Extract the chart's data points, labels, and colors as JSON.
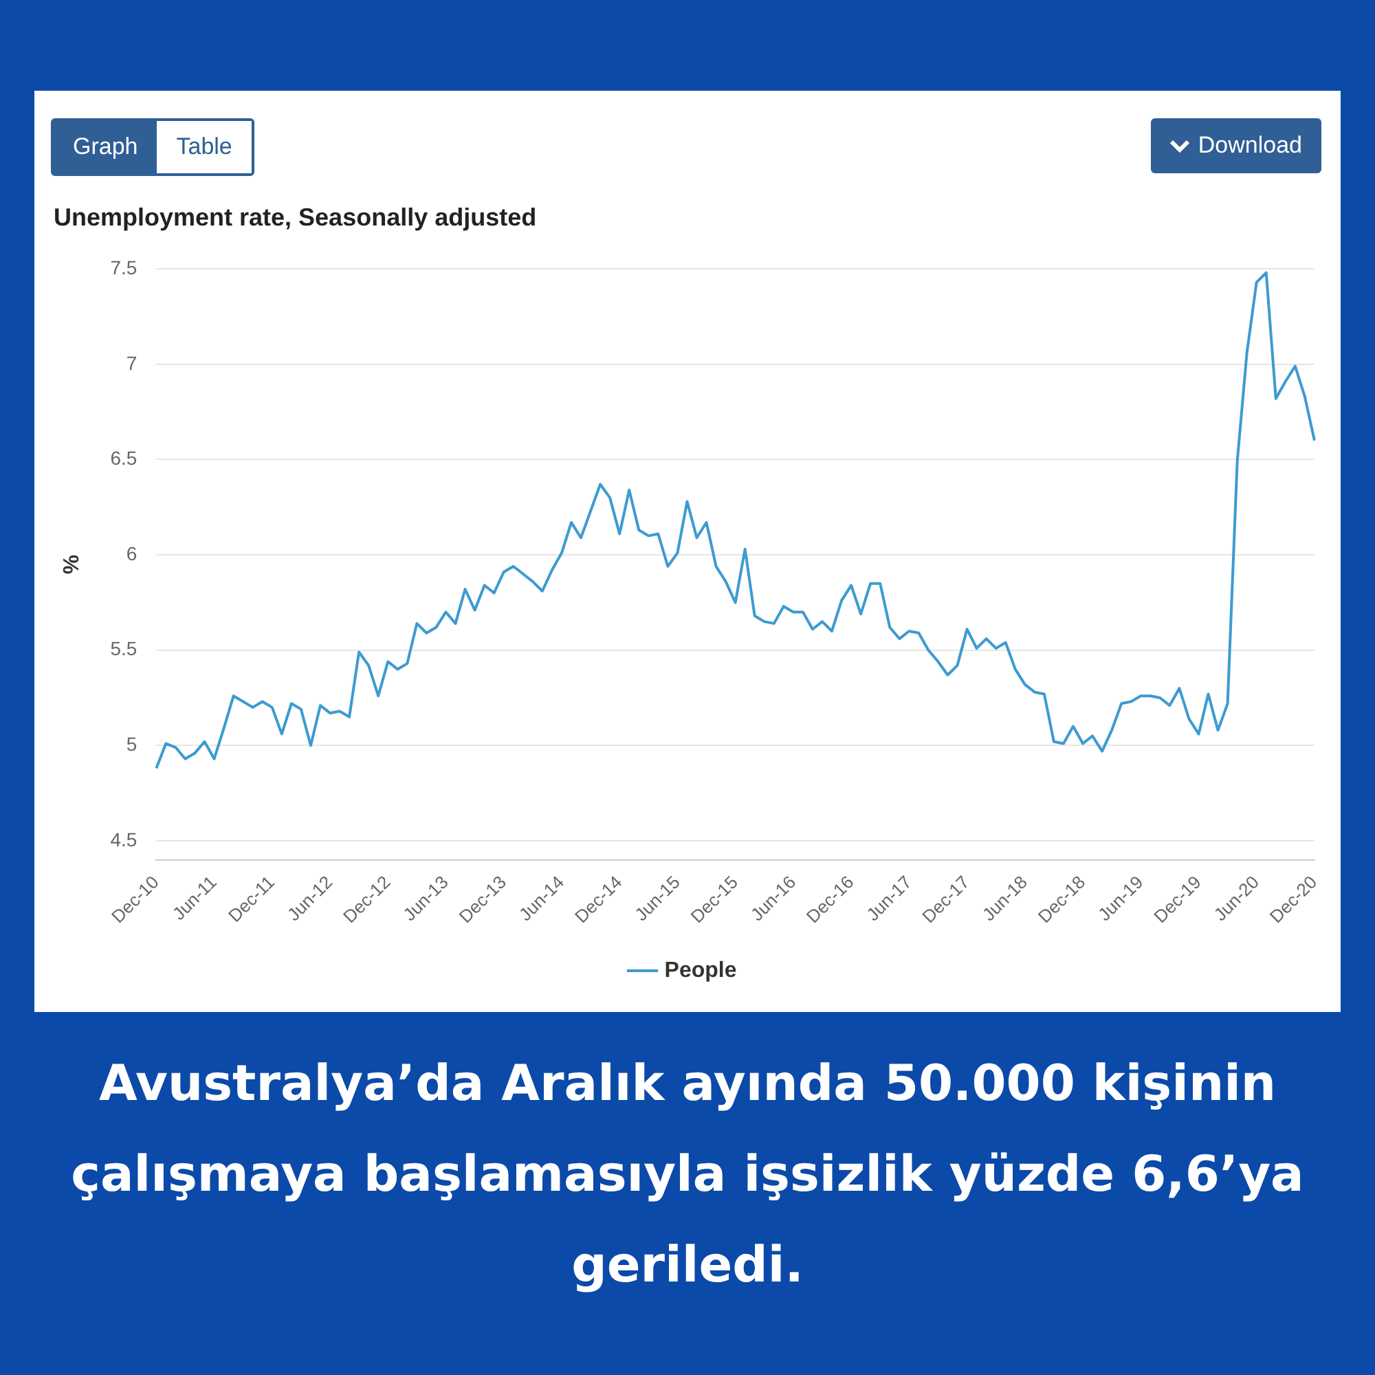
{
  "chart_data": {
    "type": "line",
    "title": "Unemployment rate, Seasonally adjusted",
    "ylabel": "%",
    "categories": [
      "Dec-10",
      null,
      null,
      null,
      null,
      null,
      "Jun-11",
      null,
      null,
      null,
      null,
      null,
      "Dec-11",
      null,
      null,
      null,
      null,
      null,
      "Jun-12",
      null,
      null,
      null,
      null,
      null,
      "Dec-12",
      null,
      null,
      null,
      null,
      null,
      "Jun-13",
      null,
      null,
      null,
      null,
      null,
      "Dec-13",
      null,
      null,
      null,
      null,
      null,
      "Jun-14",
      null,
      null,
      null,
      null,
      null,
      "Dec-14",
      null,
      null,
      null,
      null,
      null,
      "Jun-15",
      null,
      null,
      null,
      null,
      null,
      "Dec-15",
      null,
      null,
      null,
      null,
      null,
      "Jun-16",
      null,
      null,
      null,
      null,
      null,
      "Dec-16",
      null,
      null,
      null,
      null,
      null,
      "Jun-17",
      null,
      null,
      null,
      null,
      null,
      "Dec-17",
      null,
      null,
      null,
      null,
      null,
      "Jun-18",
      null,
      null,
      null,
      null,
      null,
      "Dec-18",
      null,
      null,
      null,
      null,
      null,
      "Jun-19",
      null,
      null,
      null,
      null,
      null,
      "Dec-19",
      null,
      null,
      null,
      null,
      null,
      "Jun-20",
      null,
      null,
      null,
      null,
      null,
      "Dec-20"
    ],
    "series": [
      {
        "name": "People",
        "color": "#3d9bd0",
        "values": [
          4.88,
          5.01,
          4.99,
          4.93,
          4.96,
          5.02,
          4.93,
          5.09,
          5.26,
          5.23,
          5.2,
          5.23,
          5.2,
          5.06,
          5.22,
          5.19,
          5.0,
          5.21,
          5.17,
          5.18,
          5.15,
          5.49,
          5.42,
          5.26,
          5.44,
          5.4,
          5.43,
          5.64,
          5.59,
          5.62,
          5.7,
          5.64,
          5.82,
          5.71,
          5.84,
          5.8,
          5.91,
          5.94,
          5.9,
          5.86,
          5.81,
          5.92,
          6.01,
          6.17,
          6.09,
          6.23,
          6.37,
          6.3,
          6.11,
          6.34,
          6.13,
          6.1,
          6.11,
          5.94,
          6.01,
          6.28,
          6.09,
          6.17,
          5.94,
          5.86,
          5.75,
          6.03,
          5.68,
          5.65,
          5.64,
          5.73,
          5.7,
          5.7,
          5.61,
          5.65,
          5.6,
          5.76,
          5.84,
          5.69,
          5.85,
          5.85,
          5.62,
          5.56,
          5.6,
          5.59,
          5.5,
          5.44,
          5.37,
          5.42,
          5.61,
          5.51,
          5.56,
          5.51,
          5.54,
          5.4,
          5.32,
          5.28,
          5.27,
          5.02,
          5.01,
          5.1,
          5.01,
          5.05,
          4.97,
          5.08,
          5.22,
          5.23,
          5.26,
          5.26,
          5.25,
          5.21,
          5.3,
          5.14,
          5.06,
          5.27,
          5.08,
          5.22,
          6.49,
          7.06,
          7.43,
          7.48,
          6.82,
          6.91,
          6.99,
          6.83,
          6.6
        ]
      }
    ],
    "ylim": [
      4.4,
      7.5
    ],
    "yticks": [
      4.5,
      5,
      5.5,
      6,
      6.5,
      7,
      7.5
    ],
    "grid": "y",
    "legend": "bottom",
    "marker": "none",
    "line_style": "solid",
    "annotations": [
      "Graph",
      "Table",
      "Download",
      "Avustralya’da Aralık ayında 50.000 kişinin çalışmaya başlamasıyla işsizlik yüzde 6,6’ya geriledi."
    ]
  }
}
